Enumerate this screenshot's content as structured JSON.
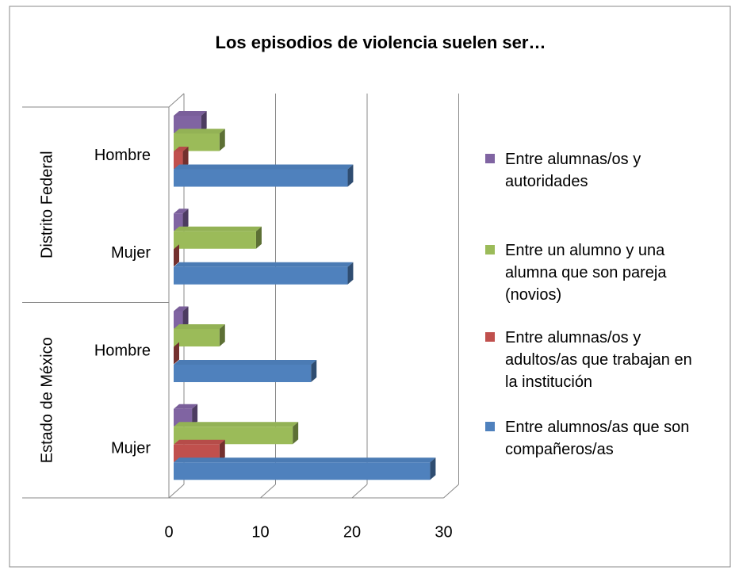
{
  "chart_data": {
    "type": "bar3d_horizontal",
    "title": "Los episodios de violencia suelen ser…",
    "groups": [
      {
        "name": "Distrito Federal",
        "categories": [
          "Hombre",
          "Mujer"
        ]
      },
      {
        "name": "Estado de México",
        "categories": [
          "Hombre",
          "Mujer"
        ]
      }
    ],
    "series": [
      {
        "name": "Entre alumnas/os y autoridades",
        "color": "#8064a2",
        "values": [
          3,
          1,
          1,
          2
        ]
      },
      {
        "name": "Entre un alumno y una alumna que son pareja (novios)",
        "color": "#9bbb59",
        "values": [
          5,
          9,
          5,
          13
        ]
      },
      {
        "name": "Entre alumnas/os y adultos/as que trabajan en la institución",
        "color": "#c0504d",
        "values": [
          1,
          0,
          0,
          5
        ]
      },
      {
        "name": "Entre alumnos/as que son compañeros/as",
        "color": "#4f81bd",
        "values": [
          19,
          19,
          15,
          28
        ]
      }
    ],
    "xlim": [
      0,
      30
    ],
    "xticks": [
      0,
      10,
      20,
      30
    ],
    "grid": true,
    "legend": "right"
  }
}
